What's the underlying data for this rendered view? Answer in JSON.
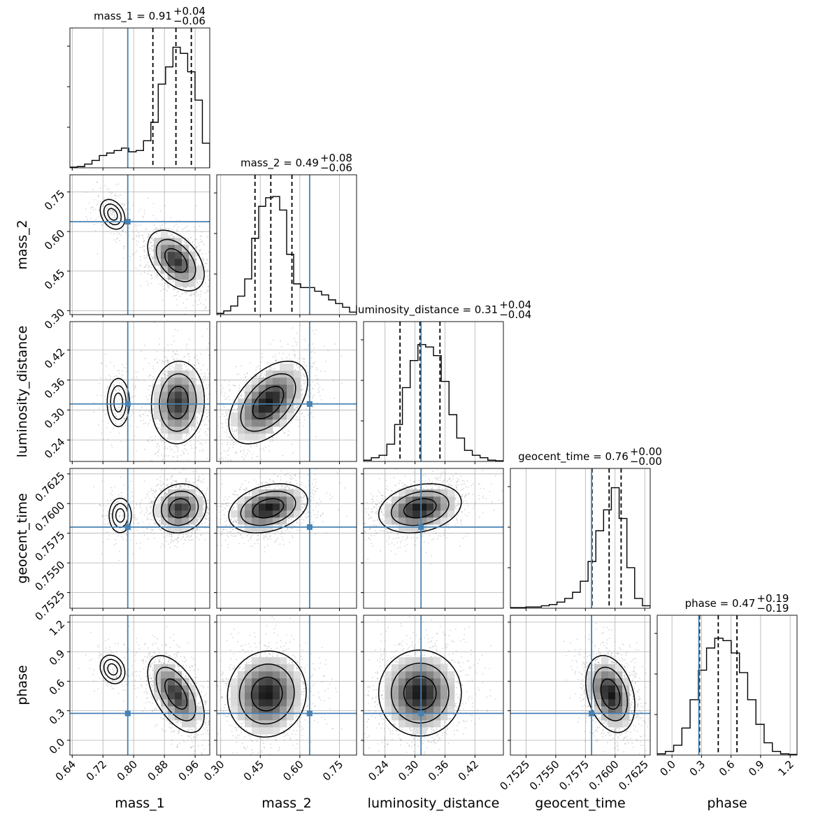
{
  "chart_data": {
    "type": "corner",
    "parameters": [
      "mass_1",
      "mass_2",
      "luminosity_distance",
      "geocent_time",
      "phase"
    ],
    "truths": {
      "mass_1": 0.7846,
      "mass_2": 0.6371,
      "luminosity_distance": 0.3121,
      "geocent_time": 0.75802,
      "phase": 0.2731
    },
    "ranges": {
      "mass_1": [
        0.634,
        0.998
      ],
      "mass_2": [
        0.285,
        0.815
      ],
      "luminosity_distance": [
        0.197,
        0.477
      ],
      "geocent_time": [
        0.75118,
        0.76296
      ],
      "phase": [
        -0.15,
        1.27
      ]
    },
    "ticks": {
      "mass_1": [
        "0.64",
        "0.72",
        "0.80",
        "0.88",
        "0.96"
      ],
      "mass_2": [
        "0.30",
        "0.45",
        "0.60",
        "0.75"
      ],
      "luminosity_distance": [
        "0.24",
        "0.30",
        "0.36",
        "0.42"
      ],
      "geocent_time": [
        "0.7525",
        "0.7550",
        "0.7575",
        "0.7600",
        "0.7625"
      ],
      "phase": [
        "0.0",
        "0.3",
        "0.6",
        "0.9",
        "1.2"
      ]
    },
    "marginals": [
      {
        "parameter": "mass_1",
        "title_text": "mass_1 = 0.91",
        "title_plus": "+0.04",
        "title_minus": "−0.06",
        "median": 0.91,
        "q_low": 0.85,
        "q_high": 0.95,
        "counts": [
          0.005,
          0.01,
          0.03,
          0.06,
          0.1,
          0.12,
          0.14,
          0.16,
          0.13,
          0.14,
          0.22,
          0.37,
          0.68,
          0.82,
          0.98,
          0.93,
          0.78,
          0.55,
          0.2
        ]
      },
      {
        "parameter": "mass_2",
        "title_text": "mass_2 = 0.49",
        "title_plus": "+0.08",
        "title_minus": "−0.06",
        "median": 0.49,
        "q_low": 0.43,
        "q_high": 0.57,
        "counts": [
          0.01,
          0.03,
          0.07,
          0.15,
          0.29,
          0.62,
          0.88,
          0.95,
          0.96,
          0.85,
          0.49,
          0.25,
          0.22,
          0.22,
          0.19,
          0.16,
          0.12,
          0.09,
          0.06,
          0.02
        ]
      },
      {
        "parameter": "luminosity_distance",
        "title_text": "luminosity_distance = 0.31",
        "title_plus": "+0.04",
        "title_minus": "−0.04",
        "median": 0.31,
        "q_low": 0.27,
        "q_high": 0.35,
        "counts": [
          0.01,
          0.03,
          0.05,
          0.14,
          0.3,
          0.6,
          0.82,
          0.95,
          0.93,
          0.86,
          0.65,
          0.38,
          0.19,
          0.09,
          0.05,
          0.03,
          0.01,
          0.005
        ]
      },
      {
        "parameter": "geocent_time",
        "title_text": "geocent_time = 0.76",
        "title_plus": "+0.00",
        "title_minus": "−0.00",
        "median": 0.7595,
        "q_low": 0.75806,
        "q_high": 0.76051,
        "counts": [
          0.005,
          0.005,
          0.01,
          0.01,
          0.02,
          0.03,
          0.05,
          0.08,
          0.13,
          0.22,
          0.38,
          0.63,
          0.8,
          0.98,
          0.73,
          0.33,
          0.08,
          0.02
        ]
      },
      {
        "parameter": "phase",
        "title_text": "phase = 0.47",
        "title_plus": "+0.19",
        "title_minus": "−0.19",
        "median": 0.47,
        "q_low": 0.28,
        "q_high": 0.66,
        "counts": [
          0.01,
          0.03,
          0.08,
          0.22,
          0.45,
          0.69,
          0.87,
          0.95,
          0.93,
          0.83,
          0.67,
          0.45,
          0.25,
          0.1,
          0.03,
          0.01,
          0.005
        ]
      }
    ],
    "density_cores": {
      "1-0": [
        {
          "cx": 0.91,
          "cy": 0.49,
          "sx": 0.032,
          "sy": 0.05,
          "rho": -0.45,
          "w": 0.88
        },
        {
          "cx": 0.745,
          "cy": 0.665,
          "sx": 0.02,
          "sy": 0.035,
          "rho": -0.3,
          "w": 0.12
        }
      ],
      "2-0": [
        {
          "cx": 0.915,
          "cy": 0.315,
          "sx": 0.03,
          "sy": 0.036,
          "rho": 0.05,
          "w": 0.88
        },
        {
          "cx": 0.76,
          "cy": 0.315,
          "sx": 0.018,
          "sy": 0.03,
          "rho": 0.0,
          "w": 0.12
        }
      ],
      "2-1": [
        {
          "cx": 0.48,
          "cy": 0.315,
          "sx": 0.065,
          "sy": 0.036,
          "rho": 0.5,
          "w": 1.0
        }
      ],
      "3-0": [
        {
          "cx": 0.92,
          "cy": 0.7596,
          "sx": 0.03,
          "sy": 0.0009,
          "rho": 0.1,
          "w": 0.88
        },
        {
          "cx": 0.765,
          "cy": 0.759,
          "sx": 0.018,
          "sy": 0.0009,
          "rho": 0.0,
          "w": 0.12
        }
      ],
      "3-1": [
        {
          "cx": 0.48,
          "cy": 0.7596,
          "sx": 0.065,
          "sy": 0.0009,
          "rho": 0.3,
          "w": 1.0
        }
      ],
      "3-2": [
        {
          "cx": 0.31,
          "cy": 0.7596,
          "sx": 0.036,
          "sy": 0.0009,
          "rho": 0.25,
          "w": 1.0
        }
      ],
      "4-0": [
        {
          "cx": 0.91,
          "cy": 0.47,
          "sx": 0.032,
          "sy": 0.17,
          "rho": -0.55,
          "w": 0.88
        },
        {
          "cx": 0.745,
          "cy": 0.72,
          "sx": 0.02,
          "sy": 0.09,
          "rho": -0.2,
          "w": 0.12
        }
      ],
      "4-1": [
        {
          "cx": 0.475,
          "cy": 0.47,
          "sx": 0.065,
          "sy": 0.19,
          "rho": 0.05,
          "w": 1.0
        }
      ],
      "4-2": [
        {
          "cx": 0.31,
          "cy": 0.48,
          "sx": 0.036,
          "sy": 0.19,
          "rho": 0.0,
          "w": 1.0
        }
      ],
      "4-3": [
        {
          "cx": 0.7596,
          "cy": 0.47,
          "sx": 0.0009,
          "sy": 0.17,
          "rho": -0.3,
          "w": 1.0
        }
      ]
    },
    "colors": {
      "truth": "#4682b4",
      "lines": "#000000",
      "grid": "#b0b0b0",
      "samples": "#8c8c8c"
    },
    "grid": true
  }
}
